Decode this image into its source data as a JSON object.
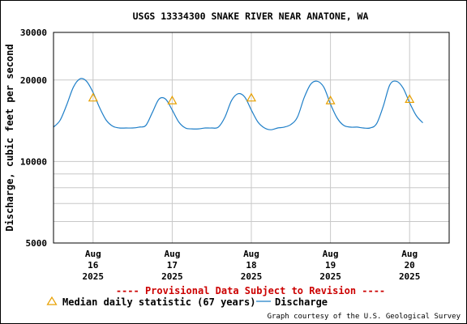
{
  "chart_data": {
    "type": "line",
    "title": "USGS 13334300 SNAKE RIVER NEAR ANATONE, WA",
    "ylabel": "Discharge, cubic feet per second",
    "yscale": "log",
    "ylim": [
      5000,
      30000
    ],
    "y_ticks": [
      "5000",
      "10000",
      "20000",
      "30000"
    ],
    "x_ticks": [
      {
        "month": "Aug",
        "day": "16",
        "year": "2025"
      },
      {
        "month": "Aug",
        "day": "17",
        "year": "2025"
      },
      {
        "month": "Aug",
        "day": "18",
        "year": "2025"
      },
      {
        "month": "Aug",
        "day": "19",
        "year": "2025"
      },
      {
        "month": "Aug",
        "day": "20",
        "year": "2025"
      }
    ],
    "xlim": [
      "2025-08-15 12:00",
      "2025-08-20 12:00"
    ],
    "grid": true,
    "series": [
      {
        "name": "Discharge",
        "color": "#1f7fc8",
        "points": [
          [
            "2025-08-15 12:00",
            13400
          ],
          [
            "2025-08-15 14:00",
            14200
          ],
          [
            "2025-08-15 16:00",
            16200
          ],
          [
            "2025-08-15 18:00",
            18800
          ],
          [
            "2025-08-15 20:00",
            20200
          ],
          [
            "2025-08-15 22:00",
            19800
          ],
          [
            "2025-08-16 00:00",
            18000
          ],
          [
            "2025-08-16 02:00",
            15800
          ],
          [
            "2025-08-16 04:00",
            14200
          ],
          [
            "2025-08-16 06:00",
            13500
          ],
          [
            "2025-08-16 08:00",
            13300
          ],
          [
            "2025-08-16 10:00",
            13300
          ],
          [
            "2025-08-16 12:00",
            13300
          ],
          [
            "2025-08-16 14:00",
            13400
          ],
          [
            "2025-08-16 16:00",
            13600
          ],
          [
            "2025-08-16 18:00",
            15200
          ],
          [
            "2025-08-16 20:00",
            17000
          ],
          [
            "2025-08-16 22:00",
            17000
          ],
          [
            "2025-08-17 00:00",
            15500
          ],
          [
            "2025-08-17 02:00",
            14000
          ],
          [
            "2025-08-17 04:00",
            13300
          ],
          [
            "2025-08-17 06:00",
            13200
          ],
          [
            "2025-08-17 08:00",
            13200
          ],
          [
            "2025-08-17 10:00",
            13300
          ],
          [
            "2025-08-17 12:00",
            13300
          ],
          [
            "2025-08-17 14:00",
            13400
          ],
          [
            "2025-08-17 16:00",
            14600
          ],
          [
            "2025-08-17 18:00",
            16800
          ],
          [
            "2025-08-17 20:00",
            17800
          ],
          [
            "2025-08-17 22:00",
            17300
          ],
          [
            "2025-08-18 00:00",
            15500
          ],
          [
            "2025-08-18 02:00",
            14000
          ],
          [
            "2025-08-18 04:00",
            13300
          ],
          [
            "2025-08-18 06:00",
            13100
          ],
          [
            "2025-08-18 08:00",
            13300
          ],
          [
            "2025-08-18 10:00",
            13400
          ],
          [
            "2025-08-18 12:00",
            13700
          ],
          [
            "2025-08-18 14:00",
            14600
          ],
          [
            "2025-08-18 16:00",
            17200
          ],
          [
            "2025-08-18 18:00",
            19300
          ],
          [
            "2025-08-18 20:00",
            19800
          ],
          [
            "2025-08-18 22:00",
            18800
          ],
          [
            "2025-08-19 00:00",
            16300
          ],
          [
            "2025-08-19 02:00",
            14500
          ],
          [
            "2025-08-19 04:00",
            13600
          ],
          [
            "2025-08-19 06:00",
            13400
          ],
          [
            "2025-08-19 08:00",
            13400
          ],
          [
            "2025-08-19 10:00",
            13300
          ],
          [
            "2025-08-19 12:00",
            13300
          ],
          [
            "2025-08-19 14:00",
            13800
          ],
          [
            "2025-08-19 16:00",
            16000
          ],
          [
            "2025-08-19 18:00",
            19200
          ],
          [
            "2025-08-19 20:00",
            19800
          ],
          [
            "2025-08-19 22:00",
            18700
          ],
          [
            "2025-08-20 00:00",
            16500
          ],
          [
            "2025-08-20 02:00",
            14800
          ],
          [
            "2025-08-20 04:00",
            13900
          ]
        ]
      },
      {
        "name": "Median daily statistic (67 years)",
        "marker": "triangle",
        "color": "#e8a000",
        "points": [
          [
            "2025-08-16 00:00",
            17200
          ],
          [
            "2025-08-17 00:00",
            16800
          ],
          [
            "2025-08-18 00:00",
            17200
          ],
          [
            "2025-08-19 00:00",
            16800
          ],
          [
            "2025-08-20 00:00",
            17000
          ]
        ]
      }
    ],
    "legend": [
      {
        "label": "Median daily statistic (67 years)",
        "marker": "triangle"
      },
      {
        "label": "Discharge",
        "marker": "line"
      }
    ],
    "legend_position": "bottom",
    "annotation": "---- Provisional Data Subject to Revision ----",
    "credit": "Graph courtesy of the U.S. Geological Survey"
  }
}
